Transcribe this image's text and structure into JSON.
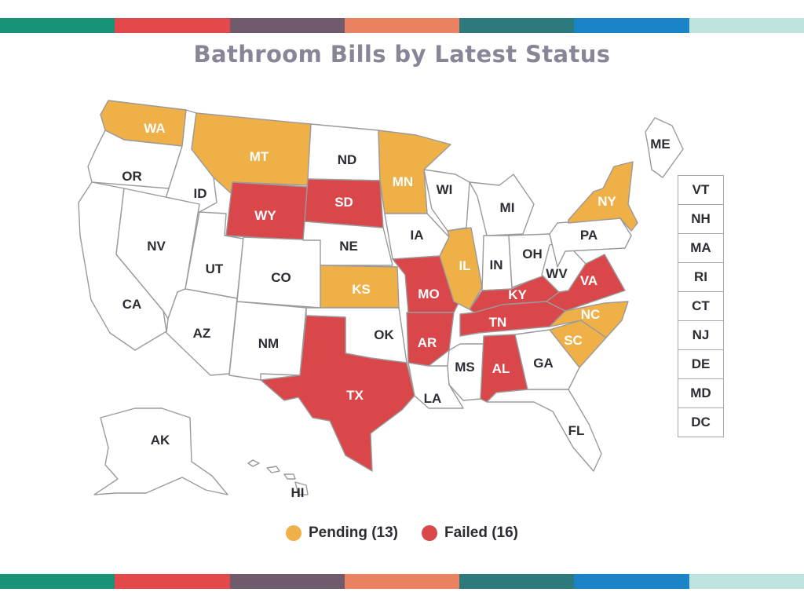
{
  "title": "Bathroom Bills by Latest Status",
  "stripe_colors": [
    "#199377",
    "#e3484a",
    "#6f5b6b",
    "#ea8262",
    "#2c7a7b",
    "#1b84c8",
    "#bfe3de"
  ],
  "status_colors": {
    "pending": "#efb048",
    "failed": "#d9474a",
    "none": "#ffffff"
  },
  "legend": [
    {
      "label": "Pending (13)",
      "status": "pending"
    },
    {
      "label": "Failed (16)",
      "status": "failed"
    }
  ],
  "states": [
    {
      "abbr": "WA",
      "status": "pending"
    },
    {
      "abbr": "OR",
      "status": "none"
    },
    {
      "abbr": "CA",
      "status": "none"
    },
    {
      "abbr": "ID",
      "status": "none"
    },
    {
      "abbr": "NV",
      "status": "none"
    },
    {
      "abbr": "MT",
      "status": "pending"
    },
    {
      "abbr": "WY",
      "status": "failed"
    },
    {
      "abbr": "UT",
      "status": "none"
    },
    {
      "abbr": "AZ",
      "status": "none"
    },
    {
      "abbr": "CO",
      "status": "none"
    },
    {
      "abbr": "NM",
      "status": "none"
    },
    {
      "abbr": "ND",
      "status": "none"
    },
    {
      "abbr": "SD",
      "status": "failed"
    },
    {
      "abbr": "NE",
      "status": "none"
    },
    {
      "abbr": "KS",
      "status": "pending"
    },
    {
      "abbr": "OK",
      "status": "none"
    },
    {
      "abbr": "TX",
      "status": "failed"
    },
    {
      "abbr": "MN",
      "status": "pending"
    },
    {
      "abbr": "IA",
      "status": "none"
    },
    {
      "abbr": "MO",
      "status": "failed"
    },
    {
      "abbr": "AR",
      "status": "failed"
    },
    {
      "abbr": "LA",
      "status": "none"
    },
    {
      "abbr": "WI",
      "status": "none"
    },
    {
      "abbr": "IL",
      "status": "pending"
    },
    {
      "abbr": "MS",
      "status": "none"
    },
    {
      "abbr": "MI",
      "status": "none"
    },
    {
      "abbr": "IN",
      "status": "none"
    },
    {
      "abbr": "KY",
      "status": "failed"
    },
    {
      "abbr": "TN",
      "status": "failed"
    },
    {
      "abbr": "AL",
      "status": "failed"
    },
    {
      "abbr": "OH",
      "status": "none"
    },
    {
      "abbr": "WV",
      "status": "none"
    },
    {
      "abbr": "GA",
      "status": "none"
    },
    {
      "abbr": "FL",
      "status": "none"
    },
    {
      "abbr": "SC",
      "status": "pending"
    },
    {
      "abbr": "NC",
      "status": "pending"
    },
    {
      "abbr": "VA",
      "status": "failed"
    },
    {
      "abbr": "PA",
      "status": "none"
    },
    {
      "abbr": "NY",
      "status": "pending"
    },
    {
      "abbr": "ME",
      "status": "none"
    },
    {
      "abbr": "AK",
      "status": "none"
    },
    {
      "abbr": "HI",
      "status": "none"
    }
  ],
  "small_states": [
    "VT",
    "NH",
    "MA",
    "RI",
    "CT",
    "NJ",
    "DE",
    "MD",
    "DC"
  ]
}
